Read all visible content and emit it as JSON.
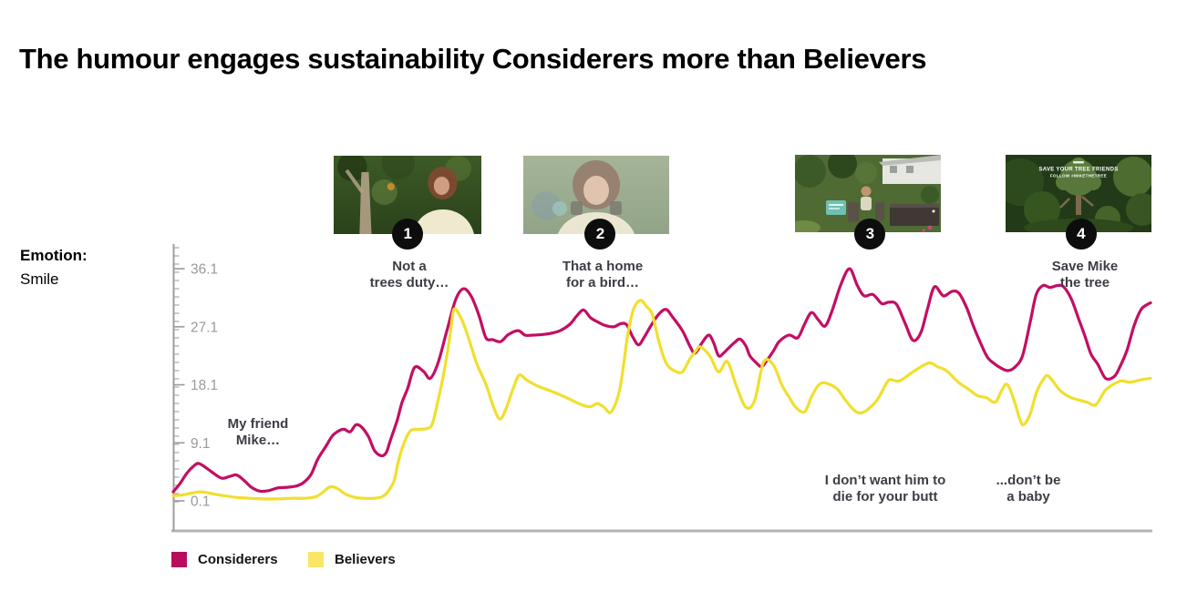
{
  "title": "The humour engages sustainability Considerers more than Believers",
  "emotion_label": {
    "prefix": "Emotion:",
    "value": "Smile"
  },
  "legend": {
    "items": [
      {
        "label": "Considerers",
        "swatch_color": "#B80D5C"
      },
      {
        "label": "Believers",
        "swatch_color": "#FBE566"
      }
    ]
  },
  "video_stills": {
    "badge_color": "#0d0d0d",
    "items": [
      {
        "number": "1"
      },
      {
        "number": "2"
      },
      {
        "number": "3"
      },
      {
        "number": "4",
        "overlay_line1": "SAVE YOUR TREE FRIENDS",
        "overlay_line2": "FOLLOW #MIKETHETREE"
      }
    ]
  },
  "chart_data": {
    "type": "line",
    "title": "",
    "ylabel": "Emotion: Smile",
    "xlabel": "",
    "x_unit": "timeline_pct",
    "y_ticks": [
      36.1,
      27.1,
      18.1,
      9.1,
      0.1
    ],
    "ylim": [
      0.1,
      36.1
    ],
    "xlim": [
      0,
      100
    ],
    "grid": false,
    "legend_position": "bottom-left",
    "markers": [
      {
        "label": "1",
        "x": 24.0
      },
      {
        "label": "2",
        "x": 43.7
      },
      {
        "label": "3",
        "x": 71.3
      },
      {
        "label": "4",
        "x": 92.9
      }
    ],
    "annotations": [
      {
        "id": "my-friend-mike",
        "x": 8.7,
        "lines": [
          "My friend",
          "Mike…"
        ]
      },
      {
        "id": "not-a-trees-duty",
        "x": 24.2,
        "lines": [
          "Not a",
          "trees duty…"
        ]
      },
      {
        "id": "that-a-home-for-a-bird",
        "x": 43.9,
        "lines": [
          "That a home",
          "for a bird…"
        ]
      },
      {
        "id": "i-dont-want-him-to-die",
        "x": 72.9,
        "lines": [
          "I don’t want him to",
          "die for your butt"
        ]
      },
      {
        "id": "dont-be-a-baby",
        "x": 87.5,
        "lines": [
          "...don’t be",
          "a baby"
        ]
      },
      {
        "id": "save-mike-the-tree",
        "x": 93.3,
        "lines": [
          "Save Mike",
          "the tree"
        ]
      }
    ],
    "series": [
      {
        "name": "Considerers",
        "color": "#C30E63",
        "points": [
          [
            0,
            1.5
          ],
          [
            0.7,
            2.8
          ],
          [
            1.4,
            4.4
          ],
          [
            2.1,
            5.5
          ],
          [
            2.6,
            5.9
          ],
          [
            3.4,
            5.2
          ],
          [
            4.2,
            4.3
          ],
          [
            5,
            3.6
          ],
          [
            5.8,
            3.9
          ],
          [
            6.5,
            4.1
          ],
          [
            7.3,
            3.2
          ],
          [
            8,
            2.2
          ],
          [
            8.9,
            1.6
          ],
          [
            9.8,
            1.7
          ],
          [
            10.7,
            2.1
          ],
          [
            11.7,
            2.2
          ],
          [
            12.6,
            2.4
          ],
          [
            13.3,
            2.9
          ],
          [
            14.1,
            4.2
          ],
          [
            14.8,
            6.6
          ],
          [
            15.6,
            8.5
          ],
          [
            16.3,
            10.2
          ],
          [
            17,
            11
          ],
          [
            17.5,
            11.2
          ],
          [
            18.1,
            10.8
          ],
          [
            18.7,
            11.9
          ],
          [
            19.3,
            11.5
          ],
          [
            20,
            10
          ],
          [
            20.6,
            7.9
          ],
          [
            21.3,
            7.1
          ],
          [
            21.8,
            7.6
          ],
          [
            22.2,
            9.4
          ],
          [
            22.9,
            12.5
          ],
          [
            23.4,
            15.3
          ],
          [
            24,
            17.6
          ],
          [
            24.7,
            20.8
          ],
          [
            25.6,
            20.2
          ],
          [
            26.3,
            19.1
          ],
          [
            27.1,
            21.5
          ],
          [
            28,
            26.5
          ],
          [
            28.9,
            31.3
          ],
          [
            29.7,
            33
          ],
          [
            30.5,
            31.8
          ],
          [
            31.3,
            28.8
          ],
          [
            32,
            25.4
          ],
          [
            32.7,
            25.1
          ],
          [
            33.5,
            24.8
          ],
          [
            34.3,
            25.9
          ],
          [
            35.3,
            26.5
          ],
          [
            36,
            25.8
          ],
          [
            36.8,
            25.8
          ],
          [
            37.8,
            25.9
          ],
          [
            38.7,
            26.1
          ],
          [
            39.6,
            26.5
          ],
          [
            40.6,
            27.5
          ],
          [
            41.3,
            28.8
          ],
          [
            42,
            29.7
          ],
          [
            42.7,
            28.5
          ],
          [
            43.5,
            27.8
          ],
          [
            44.2,
            27.3
          ],
          [
            45.1,
            27.1
          ],
          [
            45.8,
            27.6
          ],
          [
            46.4,
            27.4
          ],
          [
            47,
            25.6
          ],
          [
            47.6,
            24.3
          ],
          [
            48.2,
            25.5
          ],
          [
            48.9,
            27.3
          ],
          [
            49.6,
            28.9
          ],
          [
            50.4,
            29.8
          ],
          [
            51.1,
            28.6
          ],
          [
            52.1,
            26.5
          ],
          [
            52.9,
            24
          ],
          [
            53.4,
            23
          ],
          [
            54.1,
            24.6
          ],
          [
            54.8,
            25.8
          ],
          [
            55.3,
            24.6
          ],
          [
            55.8,
            22.6
          ],
          [
            56.3,
            23
          ],
          [
            56.7,
            23.6
          ],
          [
            57.4,
            24.6
          ],
          [
            58,
            25.2
          ],
          [
            58.6,
            24.1
          ],
          [
            59,
            22.6
          ],
          [
            59.6,
            21.6
          ],
          [
            60.2,
            20.9
          ],
          [
            60.7,
            21.8
          ],
          [
            61.4,
            23.3
          ],
          [
            62,
            24.8
          ],
          [
            63,
            25.8
          ],
          [
            63.9,
            25.4
          ],
          [
            64.6,
            27.5
          ],
          [
            65.3,
            29.3
          ],
          [
            66,
            28.2
          ],
          [
            66.7,
            27.2
          ],
          [
            67.4,
            29.5
          ],
          [
            68.3,
            33.6
          ],
          [
            69.2,
            36.1
          ],
          [
            70,
            33.5
          ],
          [
            70.7,
            31.9
          ],
          [
            71.6,
            32.1
          ],
          [
            72.5,
            30.7
          ],
          [
            73.2,
            30.9
          ],
          [
            74,
            30.6
          ],
          [
            74.9,
            27.6
          ],
          [
            75.7,
            25
          ],
          [
            76.5,
            26.2
          ],
          [
            77.2,
            30
          ],
          [
            77.9,
            33.3
          ],
          [
            78.8,
            31.9
          ],
          [
            79.7,
            32.6
          ],
          [
            80.4,
            32.3
          ],
          [
            81.2,
            30
          ],
          [
            81.9,
            27.1
          ],
          [
            82.6,
            24.6
          ],
          [
            83.3,
            22.4
          ],
          [
            84,
            21.4
          ],
          [
            84.7,
            20.7
          ],
          [
            85.4,
            20.3
          ],
          [
            86.1,
            20.8
          ],
          [
            86.9,
            22.6
          ],
          [
            87.7,
            27.9
          ],
          [
            88.3,
            32.1
          ],
          [
            89,
            33.5
          ],
          [
            89.7,
            33.2
          ],
          [
            90.5,
            33.5
          ],
          [
            91.1,
            33.3
          ],
          [
            91.9,
            31.4
          ],
          [
            92.6,
            28.5
          ],
          [
            93.3,
            25.6
          ],
          [
            93.9,
            22.9
          ],
          [
            94.6,
            21.3
          ],
          [
            95.4,
            19.1
          ],
          [
            96.3,
            19.4
          ],
          [
            96.9,
            21
          ],
          [
            97.6,
            23.5
          ],
          [
            98.3,
            27.2
          ],
          [
            99,
            29.7
          ],
          [
            99.6,
            30.5
          ],
          [
            100,
            30.8
          ]
        ]
      },
      {
        "name": "Believers",
        "color": "#F0DF2E",
        "points": [
          [
            0,
            0.9
          ],
          [
            0.9,
            1
          ],
          [
            1.9,
            1.3
          ],
          [
            2.8,
            1.5
          ],
          [
            3.7,
            1.3
          ],
          [
            4.7,
            1
          ],
          [
            5.6,
            0.8
          ],
          [
            6.7,
            0.6
          ],
          [
            7.9,
            0.5
          ],
          [
            9.3,
            0.4
          ],
          [
            10.7,
            0.4
          ],
          [
            12.1,
            0.5
          ],
          [
            13.5,
            0.5
          ],
          [
            14.7,
            0.8
          ],
          [
            15.6,
            1.8
          ],
          [
            16.1,
            2.3
          ],
          [
            16.8,
            2
          ],
          [
            17.7,
            1.1
          ],
          [
            18.7,
            0.6
          ],
          [
            19.6,
            0.5
          ],
          [
            20.5,
            0.5
          ],
          [
            21.3,
            0.7
          ],
          [
            21.9,
            1.4
          ],
          [
            22.6,
            3.2
          ],
          [
            23,
            6
          ],
          [
            23.6,
            9
          ],
          [
            24.3,
            11
          ],
          [
            25.2,
            11.2
          ],
          [
            25.9,
            11.3
          ],
          [
            26.5,
            12
          ],
          [
            27.1,
            15.7
          ],
          [
            27.7,
            20
          ],
          [
            28.3,
            25.5
          ],
          [
            28.7,
            29.7
          ],
          [
            29.3,
            28.9
          ],
          [
            29.9,
            26.8
          ],
          [
            30.5,
            24
          ],
          [
            31.1,
            21.2
          ],
          [
            32,
            18.2
          ],
          [
            32.7,
            15
          ],
          [
            33.4,
            12.8
          ],
          [
            34,
            14.2
          ],
          [
            34.8,
            17.6
          ],
          [
            35.4,
            19.6
          ],
          [
            36.2,
            18.8
          ],
          [
            37.3,
            17.9
          ],
          [
            38.7,
            17.1
          ],
          [
            40.1,
            16.2
          ],
          [
            41.8,
            15
          ],
          [
            42.7,
            14.7
          ],
          [
            43.4,
            15.2
          ],
          [
            44.1,
            14.6
          ],
          [
            44.8,
            13.9
          ],
          [
            45.7,
            17.5
          ],
          [
            46.5,
            25.8
          ],
          [
            47.1,
            29.8
          ],
          [
            47.8,
            31.2
          ],
          [
            48.4,
            30.3
          ],
          [
            49,
            29.1
          ],
          [
            49.6,
            25.4
          ],
          [
            50.2,
            22.3
          ],
          [
            50.7,
            20.9
          ],
          [
            51.4,
            20.2
          ],
          [
            52.1,
            20.1
          ],
          [
            52.9,
            22.2
          ],
          [
            53.5,
            23.4
          ],
          [
            53.9,
            24
          ],
          [
            54.9,
            22.6
          ],
          [
            55.8,
            20.1
          ],
          [
            56.7,
            21.7
          ],
          [
            57.6,
            18
          ],
          [
            58.6,
            14.6
          ],
          [
            59.5,
            15.7
          ],
          [
            60.4,
            21.6
          ],
          [
            61.4,
            21.2
          ],
          [
            62.3,
            18
          ],
          [
            63.1,
            16
          ],
          [
            63.7,
            14.6
          ],
          [
            64.6,
            13.9
          ],
          [
            65.3,
            16.2
          ],
          [
            66,
            18
          ],
          [
            66.7,
            18.4
          ],
          [
            67.9,
            17.5
          ],
          [
            68.8,
            15.7
          ],
          [
            69.8,
            14
          ],
          [
            70.7,
            13.9
          ],
          [
            72,
            15.7
          ],
          [
            73,
            18.4
          ],
          [
            73.4,
            18.9
          ],
          [
            74.3,
            18.7
          ],
          [
            75.4,
            19.8
          ],
          [
            76.3,
            20.7
          ],
          [
            77.4,
            21.5
          ],
          [
            78.2,
            20.9
          ],
          [
            79.1,
            20.3
          ],
          [
            80.4,
            18.4
          ],
          [
            81.3,
            17.5
          ],
          [
            82.3,
            16.4
          ],
          [
            83.2,
            16.1
          ],
          [
            84.1,
            15.4
          ],
          [
            84.7,
            17
          ],
          [
            85.2,
            18.2
          ],
          [
            85.6,
            17.5
          ],
          [
            86.1,
            15.4
          ],
          [
            86.6,
            12.9
          ],
          [
            87,
            11.9
          ],
          [
            87.7,
            13.6
          ],
          [
            88.3,
            16.8
          ],
          [
            89.1,
            19.1
          ],
          [
            89.6,
            19.4
          ],
          [
            90.7,
            17.3
          ],
          [
            91.6,
            16.3
          ],
          [
            92.5,
            15.8
          ],
          [
            93.5,
            15.4
          ],
          [
            94.4,
            15
          ],
          [
            95.3,
            17.1
          ],
          [
            96.1,
            18.1
          ],
          [
            97,
            18.7
          ],
          [
            97.9,
            18.5
          ],
          [
            99.1,
            18.9
          ],
          [
            100,
            19.1
          ]
        ]
      }
    ]
  }
}
